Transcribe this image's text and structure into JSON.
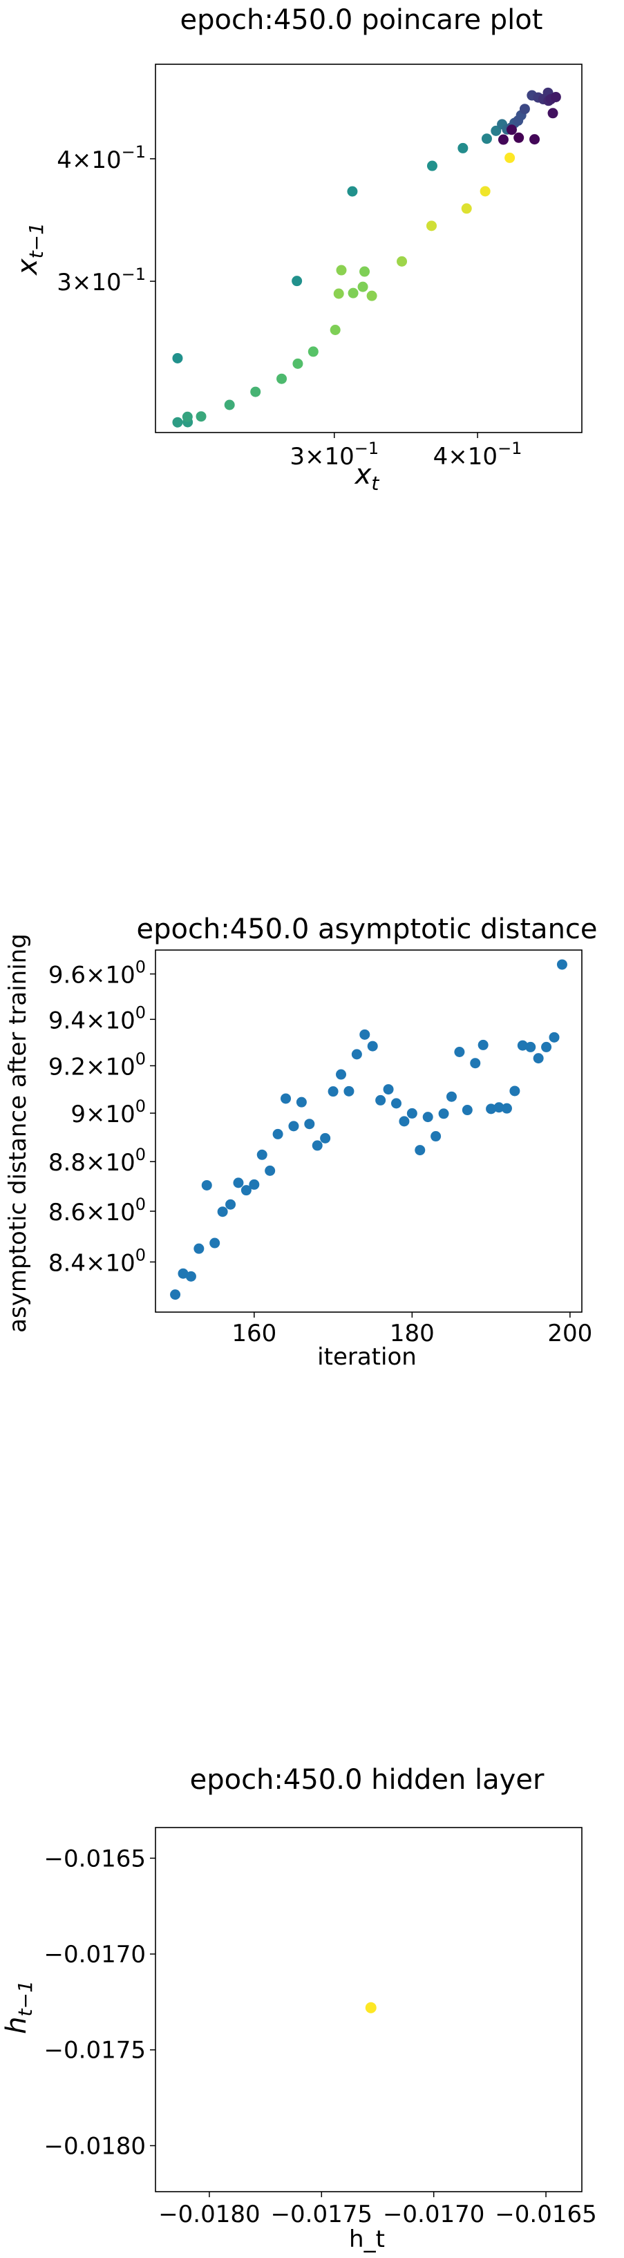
{
  "chart_data": [
    {
      "type": "scatter",
      "title": "epoch:450.0 poincare plot",
      "xlabel_base": "x",
      "xlabel_sub": "t",
      "ylabel_base": "x",
      "ylabel_sub": "t−1",
      "xscale": "log",
      "yscale": "log",
      "xlim": [
        0.2095,
        0.4932
      ],
      "ylim": [
        0.2103,
        0.4994
      ],
      "x_ticks": [
        {
          "value": 0.3,
          "base": "3×10",
          "exp": "−1"
        },
        {
          "value": 0.4,
          "base": "4×10",
          "exp": "−1"
        }
      ],
      "y_ticks": [
        {
          "value": 0.3,
          "base": "3×10",
          "exp": "−1"
        },
        {
          "value": 0.4,
          "base": "4×10",
          "exp": "−1"
        }
      ],
      "colormap": "viridis",
      "points": [
        {
          "x": 0.219,
          "y": 0.2154,
          "c": 0.55
        },
        {
          "x": 0.2235,
          "y": 0.2155,
          "c": 0.55
        },
        {
          "x": 0.2234,
          "y": 0.2182,
          "c": 0.58
        },
        {
          "x": 0.2296,
          "y": 0.2184,
          "c": 0.6
        },
        {
          "x": 0.2431,
          "y": 0.2244,
          "c": 0.62
        },
        {
          "x": 0.2561,
          "y": 0.2314,
          "c": 0.65
        },
        {
          "x": 0.2699,
          "y": 0.2386,
          "c": 0.68
        },
        {
          "x": 0.2788,
          "y": 0.2472,
          "c": 0.7
        },
        {
          "x": 0.2876,
          "y": 0.2543,
          "c": 0.72
        },
        {
          "x": 0.3006,
          "y": 0.2676,
          "c": 0.8
        },
        {
          "x": 0.3027,
          "y": 0.2914,
          "c": 0.82
        },
        {
          "x": 0.3043,
          "y": 0.3079,
          "c": 0.82
        },
        {
          "x": 0.3116,
          "y": 0.2918,
          "c": 0.8
        },
        {
          "x": 0.3177,
          "y": 0.2961,
          "c": 0.8
        },
        {
          "x": 0.3188,
          "y": 0.3069,
          "c": 0.8
        },
        {
          "x": 0.3235,
          "y": 0.2899,
          "c": 0.82
        },
        {
          "x": 0.3436,
          "y": 0.3143,
          "c": 0.85
        },
        {
          "x": 0.3647,
          "y": 0.3417,
          "c": 0.93
        },
        {
          "x": 0.3913,
          "y": 0.3559,
          "c": 0.95
        },
        {
          "x": 0.4062,
          "y": 0.3706,
          "c": 0.98
        },
        {
          "x": 0.4267,
          "y": 0.4009,
          "c": 1.0
        },
        {
          "x": 0.219,
          "y": 0.2504,
          "c": 0.5
        },
        {
          "x": 0.2783,
          "y": 0.3002,
          "c": 0.5
        },
        {
          "x": 0.3111,
          "y": 0.3705,
          "c": 0.5
        },
        {
          "x": 0.3652,
          "y": 0.3934,
          "c": 0.5
        },
        {
          "x": 0.3884,
          "y": 0.4101,
          "c": 0.48
        },
        {
          "x": 0.4075,
          "y": 0.4193,
          "c": 0.45
        },
        {
          "x": 0.4151,
          "y": 0.4271,
          "c": 0.42
        },
        {
          "x": 0.4202,
          "y": 0.4337,
          "c": 0.38
        },
        {
          "x": 0.4245,
          "y": 0.4285,
          "c": 0.35
        },
        {
          "x": 0.4279,
          "y": 0.4303,
          "c": 0.3
        },
        {
          "x": 0.4309,
          "y": 0.4351,
          "c": 0.28
        },
        {
          "x": 0.4339,
          "y": 0.4375,
          "c": 0.25
        },
        {
          "x": 0.4366,
          "y": 0.443,
          "c": 0.25
        },
        {
          "x": 0.4398,
          "y": 0.4496,
          "c": 0.22
        },
        {
          "x": 0.4462,
          "y": 0.4642,
          "c": 0.2
        },
        {
          "x": 0.4518,
          "y": 0.4619,
          "c": 0.18
        },
        {
          "x": 0.4565,
          "y": 0.4601,
          "c": 0.15
        },
        {
          "x": 0.4608,
          "y": 0.4671,
          "c": 0.15
        },
        {
          "x": 0.4613,
          "y": 0.4584,
          "c": 0.12
        },
        {
          "x": 0.4634,
          "y": 0.4601,
          "c": 0.1
        },
        {
          "x": 0.4681,
          "y": 0.4624,
          "c": 0.08
        },
        {
          "x": 0.4213,
          "y": 0.4184,
          "c": 0.02
        },
        {
          "x": 0.4284,
          "y": 0.4282,
          "c": 0.02
        },
        {
          "x": 0.4345,
          "y": 0.4203,
          "c": 0.0
        },
        {
          "x": 0.4485,
          "y": 0.4187,
          "c": 0.02
        },
        {
          "x": 0.4653,
          "y": 0.4452,
          "c": 0.05
        }
      ]
    },
    {
      "type": "scatter",
      "title": "epoch:450.0 asymptotic distance",
      "xlabel": "iteration",
      "ylabel": "asymptotic distance after training",
      "color": "#1f77b4",
      "yscale": "log",
      "xlim": [
        147.5,
        201.5
      ],
      "ylim": [
        8.207,
        9.707
      ],
      "x_ticks": [
        {
          "value": 160,
          "label": "160"
        },
        {
          "value": 180,
          "label": "180"
        },
        {
          "value": 200,
          "label": "200"
        }
      ],
      "y_ticks": [
        {
          "value": 8.4,
          "base": "8.4×10",
          "exp": "0"
        },
        {
          "value": 8.6,
          "base": "8.6×10",
          "exp": "0"
        },
        {
          "value": 8.8,
          "base": "8.8×10",
          "exp": "0"
        },
        {
          "value": 9.0,
          "base": "9×10",
          "exp": "0"
        },
        {
          "value": 9.2,
          "base": "9.2×10",
          "exp": "0"
        },
        {
          "value": 9.4,
          "base": "9.4×10",
          "exp": "0"
        },
        {
          "value": 9.6,
          "base": "9.6×10",
          "exp": "0"
        }
      ],
      "x": [
        150,
        151,
        152,
        153,
        154,
        155,
        156,
        157,
        158,
        159,
        160,
        161,
        162,
        163,
        164,
        165,
        166,
        167,
        168,
        169,
        170,
        171,
        172,
        173,
        174,
        175,
        176,
        177,
        178,
        179,
        180,
        181,
        182,
        183,
        184,
        185,
        186,
        187,
        188,
        189,
        190,
        191,
        192,
        193,
        194,
        195,
        196,
        197,
        198,
        199
      ],
      "y": [
        8.274,
        8.355,
        8.344,
        8.452,
        8.704,
        8.474,
        8.598,
        8.627,
        8.714,
        8.684,
        8.707,
        8.828,
        8.763,
        8.913,
        9.061,
        8.946,
        9.046,
        8.955,
        8.866,
        8.896,
        9.091,
        9.163,
        9.092,
        9.249,
        9.334,
        9.284,
        9.054,
        9.1,
        9.041,
        8.966,
        8.999,
        8.847,
        8.984,
        8.904,
        8.998,
        9.069,
        9.259,
        9.013,
        9.211,
        9.289,
        9.018,
        9.024,
        9.02,
        9.093,
        9.287,
        9.28,
        9.232,
        9.28,
        9.322,
        9.642
      ]
    },
    {
      "type": "scatter",
      "title": "epoch:450.0 hidden layer",
      "xlabel": "h_t",
      "ylabel_base": "h",
      "ylabel_sub": "t−1",
      "xlim": [
        -0.01824,
        -0.01634
      ],
      "ylim": [
        -0.01824,
        -0.01634
      ],
      "x_ticks": [
        "−0.0180",
        "−0.0175",
        "−0.0170",
        "−0.0165"
      ],
      "y_ticks": [
        "−0.0165",
        "−0.0170",
        "−0.0175",
        "−0.0180"
      ],
      "x_tick_values": [
        -0.018,
        -0.0175,
        -0.017,
        -0.0165
      ],
      "y_tick_values": [
        -0.0165,
        -0.017,
        -0.0175,
        -0.018
      ],
      "color": "#fde725",
      "points": [
        {
          "x": -0.01728,
          "y": -0.01728
        }
      ]
    }
  ]
}
